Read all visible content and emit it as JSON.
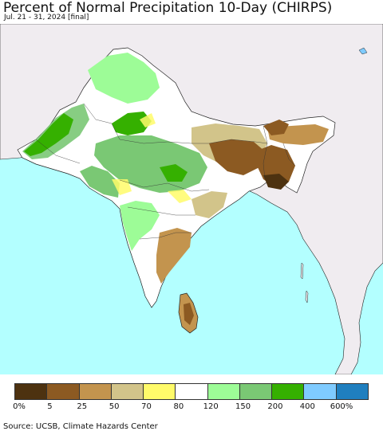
{
  "header": {
    "title": "Percent of Normal Precipitation 10-Day (CHIRPS)",
    "subtitle": "Jul. 21 - 31, 2024 [final]"
  },
  "colors": {
    "ocean": "#b3ffff",
    "land_outside": "#f0ecf0",
    "border": "#222222"
  },
  "legend": {
    "swatches": [
      {
        "color": "#4d3210"
      },
      {
        "color": "#8c5a22"
      },
      {
        "color": "#c3944e"
      },
      {
        "color": "#d2c48a"
      },
      {
        "color": "#fffb6a"
      },
      {
        "color": "#ffffff"
      },
      {
        "color": "#9dfc97"
      },
      {
        "color": "#7ac874"
      },
      {
        "color": "#35b000"
      },
      {
        "color": "#7fcbff"
      },
      {
        "color": "#1f7fbf"
      }
    ],
    "labels": [
      "0%",
      "5",
      "25",
      "50",
      "70",
      "80",
      "120",
      "150",
      "200",
      "400",
      "600%"
    ]
  },
  "footer": {
    "source": "Source: UCSB, Climate Hazards Center"
  }
}
